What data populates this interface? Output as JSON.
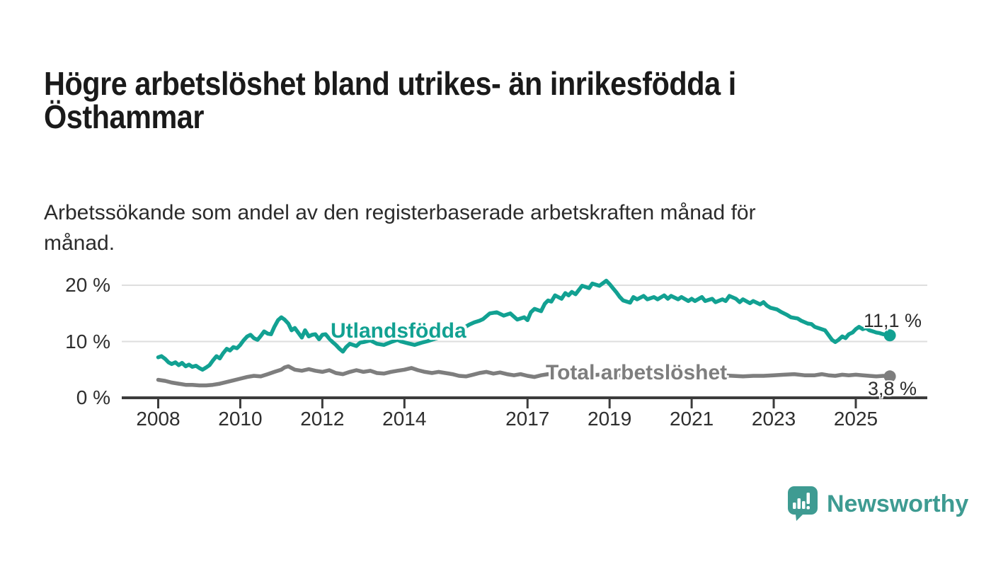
{
  "header": {
    "title": "Högre arbetslöshet bland utrikes- än inrikesfödda i\nÖsthammar",
    "subtitle": "Arbetssökande som andel av den registerbaserade arbetskraften månad för\nmånad."
  },
  "branding": {
    "logo_text": "Newsworthy",
    "logo_icon": "speech-bubble-bar-chart-icon",
    "logo_color": "#3e9b92"
  },
  "colors": {
    "series_foreign_born": "#12a192",
    "series_total": "#7e7e7e",
    "gridline": "#dedede",
    "axis": "#3c3c3c",
    "axis_text": "#2e2e2e",
    "title_text": "#1a1a1a"
  },
  "chart_data": {
    "type": "line",
    "title": "Högre arbetslöshet bland utrikes- än inrikesfödda i Östhammar",
    "subtitle": "Arbetssökande som andel av den registerbaserade arbetskraften månad för månad.",
    "xlabel": "",
    "ylabel": "",
    "grid": "horizontal",
    "legend_position": "inline-labels",
    "xlim": [
      2007.1,
      2026.75
    ],
    "ylim": [
      0,
      22
    ],
    "x_unit": "year (monthly data)",
    "y_unit": "percent",
    "y_ticks": {
      "values": [
        0,
        10,
        20
      ],
      "labels": [
        "0 %",
        "10 %",
        "20 %"
      ]
    },
    "x_ticks": {
      "values": [
        2008,
        2010,
        2012,
        2014,
        2017,
        2019,
        2021,
        2023,
        2025
      ],
      "labels": [
        "2008",
        "2010",
        "2012",
        "2014",
        "2017",
        "2019",
        "2021",
        "2023",
        "2025"
      ]
    },
    "series": [
      {
        "name": "Utlandsfödda",
        "color": "#12a192",
        "end_label": "11,1 %",
        "last_value": 11.1,
        "points": [
          [
            2008.0,
            7.2
          ],
          [
            2008.08,
            7.4
          ],
          [
            2008.17,
            6.9
          ],
          [
            2008.25,
            6.3
          ],
          [
            2008.33,
            6.0
          ],
          [
            2008.42,
            6.3
          ],
          [
            2008.5,
            5.8
          ],
          [
            2008.58,
            6.2
          ],
          [
            2008.67,
            5.6
          ],
          [
            2008.75,
            5.9
          ],
          [
            2008.83,
            5.5
          ],
          [
            2008.92,
            5.7
          ],
          [
            2009.0,
            5.3
          ],
          [
            2009.08,
            5.0
          ],
          [
            2009.17,
            5.4
          ],
          [
            2009.25,
            5.8
          ],
          [
            2009.33,
            6.6
          ],
          [
            2009.42,
            7.4
          ],
          [
            2009.5,
            7.0
          ],
          [
            2009.58,
            7.9
          ],
          [
            2009.67,
            8.7
          ],
          [
            2009.75,
            8.4
          ],
          [
            2009.83,
            9.0
          ],
          [
            2009.92,
            8.8
          ],
          [
            2010.0,
            9.4
          ],
          [
            2010.08,
            10.2
          ],
          [
            2010.17,
            10.9
          ],
          [
            2010.25,
            11.2
          ],
          [
            2010.33,
            10.6
          ],
          [
            2010.42,
            10.3
          ],
          [
            2010.5,
            11.0
          ],
          [
            2010.58,
            11.8
          ],
          [
            2010.67,
            11.4
          ],
          [
            2010.75,
            11.3
          ],
          [
            2010.83,
            12.6
          ],
          [
            2010.92,
            13.8
          ],
          [
            2011.0,
            14.3
          ],
          [
            2011.08,
            13.9
          ],
          [
            2011.17,
            13.2
          ],
          [
            2011.25,
            12.0
          ],
          [
            2011.33,
            12.4
          ],
          [
            2011.42,
            11.5
          ],
          [
            2011.5,
            10.7
          ],
          [
            2011.58,
            12.0
          ],
          [
            2011.67,
            10.9
          ],
          [
            2011.75,
            11.2
          ],
          [
            2011.83,
            11.3
          ],
          [
            2011.92,
            10.4
          ],
          [
            2012.0,
            11.2
          ],
          [
            2012.08,
            11.3
          ],
          [
            2012.17,
            10.5
          ],
          [
            2012.25,
            9.9
          ],
          [
            2012.33,
            9.4
          ],
          [
            2012.42,
            8.7
          ],
          [
            2012.5,
            8.2
          ],
          [
            2012.58,
            9.0
          ],
          [
            2012.67,
            9.6
          ],
          [
            2012.75,
            9.4
          ],
          [
            2012.83,
            9.2
          ],
          [
            2012.92,
            9.8
          ],
          [
            2013.0,
            9.9
          ],
          [
            2013.17,
            10.2
          ],
          [
            2013.33,
            9.6
          ],
          [
            2013.5,
            9.4
          ],
          [
            2013.67,
            9.9
          ],
          [
            2013.83,
            10.3
          ],
          [
            2013.92,
            10.0
          ],
          [
            2014.08,
            9.7
          ],
          [
            2014.25,
            9.4
          ],
          [
            2014.42,
            9.8
          ],
          [
            2014.58,
            10.1
          ],
          [
            2014.75,
            10.5
          ],
          [
            2014.92,
            10.9
          ],
          [
            2015.08,
            11.2
          ],
          [
            2015.25,
            11.7
          ],
          [
            2015.42,
            12.3
          ],
          [
            2015.58,
            13.0
          ],
          [
            2015.7,
            13.4
          ],
          [
            2015.83,
            13.7
          ],
          [
            2015.92,
            14.0
          ],
          [
            2016.08,
            15.0
          ],
          [
            2016.25,
            15.2
          ],
          [
            2016.42,
            14.6
          ],
          [
            2016.58,
            15.0
          ],
          [
            2016.75,
            13.9
          ],
          [
            2016.92,
            14.3
          ],
          [
            2017.0,
            13.8
          ],
          [
            2017.08,
            15.2
          ],
          [
            2017.17,
            15.8
          ],
          [
            2017.33,
            15.4
          ],
          [
            2017.42,
            16.7
          ],
          [
            2017.5,
            17.3
          ],
          [
            2017.58,
            17.1
          ],
          [
            2017.67,
            18.2
          ],
          [
            2017.83,
            17.6
          ],
          [
            2017.92,
            18.6
          ],
          [
            2018.0,
            18.2
          ],
          [
            2018.08,
            18.8
          ],
          [
            2018.17,
            18.4
          ],
          [
            2018.33,
            19.9
          ],
          [
            2018.5,
            19.5
          ],
          [
            2018.58,
            20.3
          ],
          [
            2018.75,
            19.9
          ],
          [
            2018.92,
            20.8
          ],
          [
            2019.0,
            20.2
          ],
          [
            2019.08,
            19.5
          ],
          [
            2019.17,
            18.7
          ],
          [
            2019.25,
            17.9
          ],
          [
            2019.33,
            17.3
          ],
          [
            2019.5,
            16.9
          ],
          [
            2019.58,
            17.9
          ],
          [
            2019.67,
            17.5
          ],
          [
            2019.83,
            18.1
          ],
          [
            2019.92,
            17.5
          ],
          [
            2020.08,
            17.9
          ],
          [
            2020.17,
            17.5
          ],
          [
            2020.33,
            18.2
          ],
          [
            2020.42,
            17.6
          ],
          [
            2020.5,
            18.1
          ],
          [
            2020.67,
            17.5
          ],
          [
            2020.75,
            17.9
          ],
          [
            2020.92,
            17.2
          ],
          [
            2021.0,
            17.6
          ],
          [
            2021.08,
            17.2
          ],
          [
            2021.25,
            17.9
          ],
          [
            2021.33,
            17.2
          ],
          [
            2021.5,
            17.6
          ],
          [
            2021.58,
            17.0
          ],
          [
            2021.75,
            17.5
          ],
          [
            2021.83,
            17.2
          ],
          [
            2021.92,
            18.1
          ],
          [
            2022.08,
            17.6
          ],
          [
            2022.17,
            17.0
          ],
          [
            2022.25,
            17.5
          ],
          [
            2022.42,
            16.8
          ],
          [
            2022.5,
            17.2
          ],
          [
            2022.67,
            16.6
          ],
          [
            2022.75,
            17.0
          ],
          [
            2022.83,
            16.4
          ],
          [
            2022.92,
            16.0
          ],
          [
            2023.08,
            15.7
          ],
          [
            2023.17,
            15.3
          ],
          [
            2023.33,
            14.7
          ],
          [
            2023.42,
            14.3
          ],
          [
            2023.58,
            14.1
          ],
          [
            2023.67,
            13.7
          ],
          [
            2023.83,
            13.2
          ],
          [
            2023.92,
            13.1
          ],
          [
            2024.0,
            12.6
          ],
          [
            2024.08,
            12.4
          ],
          [
            2024.25,
            12.0
          ],
          [
            2024.33,
            11.2
          ],
          [
            2024.42,
            10.3
          ],
          [
            2024.5,
            9.9
          ],
          [
            2024.58,
            10.3
          ],
          [
            2024.67,
            10.9
          ],
          [
            2024.75,
            10.6
          ],
          [
            2024.83,
            11.3
          ],
          [
            2024.92,
            11.6
          ],
          [
            2025.0,
            12.2
          ],
          [
            2025.08,
            12.6
          ],
          [
            2025.17,
            12.2
          ],
          [
            2025.25,
            12.4
          ],
          [
            2025.33,
            12.0
          ],
          [
            2025.42,
            11.8
          ],
          [
            2025.5,
            11.6
          ],
          [
            2025.58,
            11.5
          ],
          [
            2025.67,
            11.3
          ],
          [
            2025.75,
            11.2
          ],
          [
            2025.83,
            11.1
          ]
        ]
      },
      {
        "name": "Total arbetslöshet",
        "color": "#7e7e7e",
        "end_label": "3,8 %",
        "last_value": 3.8,
        "points": [
          [
            2008.0,
            3.2
          ],
          [
            2008.17,
            3.0
          ],
          [
            2008.33,
            2.7
          ],
          [
            2008.5,
            2.5
          ],
          [
            2008.67,
            2.3
          ],
          [
            2008.83,
            2.3
          ],
          [
            2009.0,
            2.2
          ],
          [
            2009.17,
            2.2
          ],
          [
            2009.33,
            2.3
          ],
          [
            2009.5,
            2.5
          ],
          [
            2009.67,
            2.8
          ],
          [
            2009.83,
            3.1
          ],
          [
            2010.0,
            3.4
          ],
          [
            2010.17,
            3.7
          ],
          [
            2010.33,
            3.9
          ],
          [
            2010.5,
            3.8
          ],
          [
            2010.67,
            4.2
          ],
          [
            2010.83,
            4.6
          ],
          [
            2011.0,
            5.0
          ],
          [
            2011.08,
            5.4
          ],
          [
            2011.17,
            5.6
          ],
          [
            2011.25,
            5.3
          ],
          [
            2011.33,
            5.0
          ],
          [
            2011.5,
            4.8
          ],
          [
            2011.67,
            5.1
          ],
          [
            2011.83,
            4.8
          ],
          [
            2012.0,
            4.6
          ],
          [
            2012.17,
            4.9
          ],
          [
            2012.33,
            4.4
          ],
          [
            2012.5,
            4.2
          ],
          [
            2012.67,
            4.6
          ],
          [
            2012.83,
            4.9
          ],
          [
            2013.0,
            4.6
          ],
          [
            2013.17,
            4.8
          ],
          [
            2013.33,
            4.4
          ],
          [
            2013.5,
            4.3
          ],
          [
            2013.67,
            4.6
          ],
          [
            2013.83,
            4.8
          ],
          [
            2014.0,
            5.0
          ],
          [
            2014.17,
            5.3
          ],
          [
            2014.33,
            4.9
          ],
          [
            2014.5,
            4.6
          ],
          [
            2014.67,
            4.4
          ],
          [
            2014.83,
            4.6
          ],
          [
            2015.0,
            4.4
          ],
          [
            2015.17,
            4.2
          ],
          [
            2015.33,
            3.9
          ],
          [
            2015.5,
            3.8
          ],
          [
            2015.67,
            4.1
          ],
          [
            2015.83,
            4.4
          ],
          [
            2016.0,
            4.6
          ],
          [
            2016.17,
            4.3
          ],
          [
            2016.33,
            4.5
          ],
          [
            2016.5,
            4.2
          ],
          [
            2016.67,
            4.0
          ],
          [
            2016.83,
            4.2
          ],
          [
            2017.0,
            3.9
          ],
          [
            2017.17,
            3.7
          ],
          [
            2017.33,
            4.0
          ],
          [
            2017.5,
            4.2
          ],
          [
            2017.67,
            4.0
          ],
          [
            2017.83,
            4.1
          ],
          [
            2018.0,
            4.0
          ],
          [
            2018.25,
            4.2
          ],
          [
            2018.5,
            4.0
          ],
          [
            2018.75,
            4.1
          ],
          [
            2019.0,
            4.2
          ],
          [
            2019.25,
            4.0
          ],
          [
            2019.5,
            4.3
          ],
          [
            2019.75,
            4.2
          ],
          [
            2020.0,
            4.2
          ],
          [
            2020.25,
            4.5
          ],
          [
            2020.5,
            4.6
          ],
          [
            2020.75,
            4.4
          ],
          [
            2021.0,
            4.3
          ],
          [
            2021.25,
            4.2
          ],
          [
            2021.5,
            4.1
          ],
          [
            2021.75,
            4.0
          ],
          [
            2022.0,
            3.9
          ],
          [
            2022.25,
            3.8
          ],
          [
            2022.5,
            3.9
          ],
          [
            2022.75,
            3.9
          ],
          [
            2023.0,
            4.0
          ],
          [
            2023.25,
            4.1
          ],
          [
            2023.5,
            4.2
          ],
          [
            2023.75,
            4.0
          ],
          [
            2024.0,
            4.0
          ],
          [
            2024.17,
            4.2
          ],
          [
            2024.33,
            4.0
          ],
          [
            2024.5,
            3.9
          ],
          [
            2024.67,
            4.1
          ],
          [
            2024.83,
            4.0
          ],
          [
            2025.0,
            4.1
          ],
          [
            2025.17,
            4.0
          ],
          [
            2025.33,
            3.9
          ],
          [
            2025.5,
            3.8
          ],
          [
            2025.67,
            3.9
          ],
          [
            2025.83,
            3.8
          ]
        ]
      }
    ]
  }
}
